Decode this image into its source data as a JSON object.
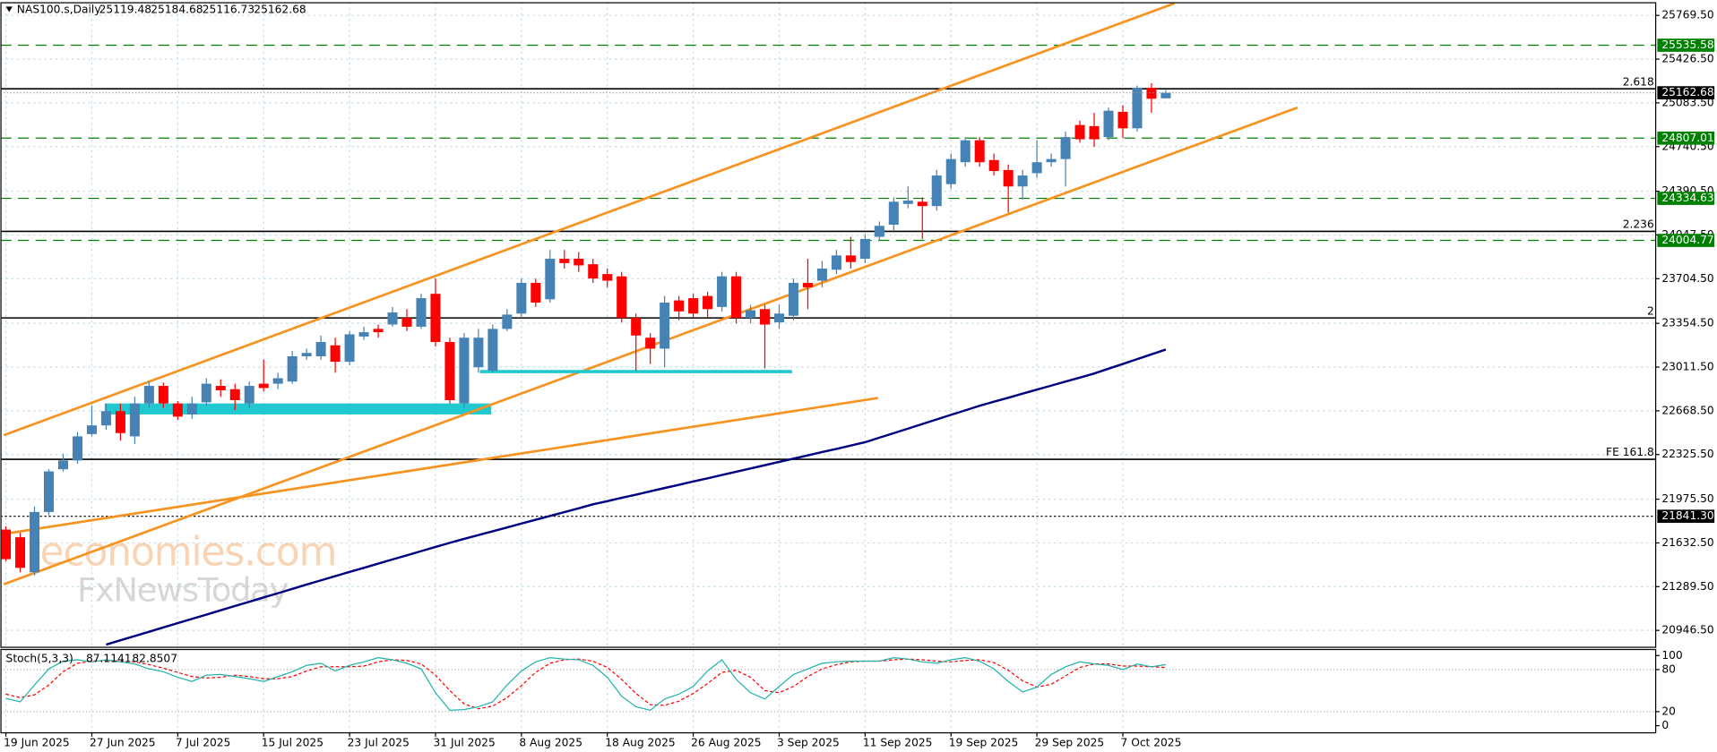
{
  "chart_data": [
    {
      "type": "candlestick",
      "title": "NAS100.s,Daily",
      "categories": [
        "19 Jun 2025",
        null,
        null,
        null,
        null,
        null,
        "27 Jun 2025",
        null,
        null,
        null,
        null,
        null,
        "7 Jul 2025",
        null,
        null,
        null,
        null,
        null,
        "15 Jul 2025",
        null,
        null,
        null,
        null,
        null,
        "23 Jul 2025",
        null,
        null,
        null,
        null,
        null,
        "31 Jul 2025",
        null,
        null,
        null,
        null,
        null,
        "8 Aug 2025",
        null,
        null,
        null,
        null,
        null,
        "18 Aug 2025",
        null,
        null,
        null,
        null,
        null,
        "26 Aug 2025",
        null,
        null,
        null,
        null,
        null,
        "3 Sep 2025",
        null,
        null,
        null,
        null,
        null,
        "11 Sep 2025",
        null,
        null,
        null,
        null,
        null,
        "19 Sep 2025",
        null,
        null,
        null,
        null,
        null,
        "29 Sep 2025",
        null,
        null,
        null,
        null,
        null,
        "7 Oct 2025",
        null,
        null,
        null
      ],
      "open": [
        21737,
        21677,
        21402,
        21875,
        22210,
        22279,
        22486,
        22554,
        22666,
        22468,
        22726,
        22864,
        22726,
        22640,
        22735,
        22864,
        22838,
        22726,
        22881,
        22881,
        22898,
        23096,
        23096,
        23182,
        23053,
        23251,
        23311,
        23345,
        23397,
        23328,
        23586,
        23208,
        22726,
        23010,
        22984,
        23311,
        23431,
        23672,
        23543,
        23861,
        23861,
        23818,
        23741,
        23723,
        23397,
        23242,
        23156,
        23534,
        23552,
        23569,
        23483,
        23723,
        23397,
        23466,
        23362,
        23414,
        23672,
        23689,
        23775,
        23887,
        23861,
        24033,
        24128,
        24291,
        24308,
        24274,
        24446,
        24618,
        24790,
        24635,
        24557,
        24428,
        24532,
        24618,
        24643,
        24910,
        24901,
        24815,
        25013,
        24884,
        25202,
        25119.48
      ],
      "high": [
        21763,
        21712,
        21918,
        22210,
        22331,
        22503,
        22709,
        22726,
        22726,
        22778,
        22898,
        22890,
        22744,
        22778,
        22924,
        22915,
        22881,
        22898,
        23070,
        22967,
        23139,
        23156,
        23259,
        23242,
        23294,
        23328,
        23345,
        23483,
        23466,
        23586,
        23706,
        23242,
        23277,
        23311,
        23345,
        23466,
        23706,
        23706,
        23930,
        23930,
        23913,
        23861,
        23784,
        23758,
        23431,
        23277,
        23569,
        23569,
        23586,
        23603,
        23758,
        23758,
        23500,
        23500,
        23500,
        23706,
        23861,
        23844,
        23930,
        24033,
        24050,
        24153,
        24343,
        24428,
        24343,
        24557,
        24686,
        24815,
        24815,
        24686,
        24600,
        24557,
        24790,
        24686,
        24858,
        24944,
        25005,
        25047,
        25065,
        25219,
        25237,
        25184.68
      ],
      "low": [
        21488,
        21402,
        21376,
        21849,
        22193,
        22253,
        22468,
        22520,
        22434,
        22408,
        22692,
        22692,
        22597,
        22606,
        22709,
        22778,
        22675,
        22692,
        22821,
        22838,
        22881,
        23070,
        23070,
        22967,
        23027,
        23225,
        23242,
        23328,
        23294,
        23311,
        23173,
        22726,
        22692,
        22967,
        22967,
        23294,
        23397,
        23483,
        23517,
        23784,
        23758,
        23672,
        23637,
        23362,
        22984,
        23036,
        23010,
        23380,
        23397,
        23397,
        23448,
        23354,
        23354,
        23001,
        23311,
        23380,
        23466,
        23637,
        23741,
        23784,
        23827,
        23999,
        24085,
        24257,
        24016,
        24239,
        24411,
        24583,
        24583,
        24514,
        24222,
        24325,
        24497,
        24583,
        24428,
        24772,
        24738,
        24790,
        24807,
        24858,
        25005,
        25116.73
      ],
      "close": [
        21505,
        21437,
        21875,
        22193,
        22279,
        22468,
        22554,
        22666,
        22494,
        22726,
        22864,
        22726,
        22623,
        22726,
        22881,
        22829,
        22752,
        22864,
        22847,
        22924,
        23096,
        23122,
        23208,
        23053,
        23268,
        23285,
        23285,
        23440,
        23328,
        23552,
        23208,
        22752,
        23242,
        23242,
        23311,
        23423,
        23672,
        23517,
        23861,
        23827,
        23809,
        23706,
        23689,
        23397,
        23259,
        23156,
        23517,
        23448,
        23431,
        23466,
        23723,
        23397,
        23457,
        23345,
        23431,
        23672,
        23637,
        23784,
        23887,
        23835,
        24016,
        24119,
        24308,
        24317,
        24274,
        24514,
        24643,
        24790,
        24618,
        24549,
        24428,
        24514,
        24618,
        24643,
        24815,
        24798,
        24798,
        25022,
        24884,
        25202,
        25116,
        25162.68
      ],
      "up_color": "#4682b4",
      "down_color": "#ff0000",
      "ylim": [
        20818,
        25873
      ],
      "yticks": [
        {
          "value": 25769.5,
          "label": "25769.50"
        },
        {
          "value": 25426.5,
          "label": "25426.50"
        },
        {
          "value": 25083.5,
          "label": "25083.50"
        },
        {
          "value": 24740.5,
          "label": "24740.50"
        },
        {
          "value": 24390.5,
          "label": "24390.50"
        },
        {
          "value": 24047.5,
          "label": "24047.50"
        },
        {
          "value": 23704.5,
          "label": "23704.50"
        },
        {
          "value": 23354.5,
          "label": "23354.50"
        },
        {
          "value": 23011.5,
          "label": "23011.50"
        },
        {
          "value": 22668.5,
          "label": "22668.50"
        },
        {
          "value": 22325.5,
          "label": "22325.50"
        },
        {
          "value": 21975.5,
          "label": "21975.50"
        },
        {
          "value": 21632.5,
          "label": "21632.50"
        },
        {
          "value": 21289.5,
          "label": "21289.50"
        },
        {
          "value": 20946.5,
          "label": "20946.50"
        }
      ],
      "grid": true,
      "ma": {
        "color": "#000080",
        "values": [
          null,
          null,
          null,
          null,
          null,
          null,
          null,
          20835,
          20869,
          20902,
          20936,
          20970,
          21003,
          21037,
          21070,
          21104,
          21138,
          21171,
          21205,
          21238,
          21272,
          21306,
          21339,
          21372,
          21405,
          21437,
          21470,
          21503,
          21535,
          21568,
          21601,
          21633,
          21664,
          21694,
          21724,
          21754,
          21784,
          21814,
          21844,
          21874,
          21904,
          21935,
          21960,
          21986,
          22011,
          22037,
          22063,
          22088,
          22114,
          22139,
          22165,
          22191,
          22216,
          22242,
          22268,
          22293,
          22319,
          22345,
          22370,
          22396,
          22422,
          22458,
          22493,
          22529,
          22565,
          22601,
          22637,
          22672,
          22708,
          22740,
          22771,
          22803,
          22835,
          22866,
          22898,
          22929,
          22961,
          22999,
          23036,
          23074,
          23111,
          23149
        ]
      },
      "levels": [
        {
          "value": 25535.58,
          "color": "#008000"
        },
        {
          "value": 24807.01,
          "color": "#008000"
        },
        {
          "value": 24334.63,
          "color": "#008000"
        },
        {
          "value": 24004.77,
          "color": "#008000"
        },
        {
          "value": 21841.3,
          "label": "21841.30",
          "color": "#000000"
        }
      ],
      "fib_lines": [
        {
          "label": "2.618",
          "value": 25194
        },
        {
          "label": "2.236",
          "value": 24076
        },
        {
          "label": "2",
          "value": 23397
        },
        {
          "label": "FE 161.8",
          "value": 22288
        }
      ],
      "trendlines": [
        {
          "color": "#f7931e",
          "points": [
            [
              -0.15,
              22477
            ],
            [
              81.6,
              25864
            ]
          ]
        },
        {
          "color": "#f7931e",
          "points": [
            [
              -0.15,
              21308
            ],
            [
              90.2,
              25047
            ]
          ]
        },
        {
          "color": "#f7931e",
          "points": [
            [
              -0.15,
              21703
            ],
            [
              60.9,
              22769
            ]
          ]
        },
        {
          "color": "#20c8d0",
          "points": [
            [
              33.1,
              22976
            ],
            [
              54.9,
              22976
            ]
          ]
        }
      ],
      "zones": [
        {
          "color": "#20c8d0",
          "x": [
            6.9,
            33.9
          ],
          "y": [
            22640,
            22726
          ]
        }
      ],
      "watermark": [
        "economies.com",
        "FxNewsToday"
      ]
    },
    {
      "type": "stochastic",
      "title": "Stoch(5,3,3)",
      "series": [
        {
          "color": "#20b2aa",
          "values": [
            39,
            34,
            58,
            81,
            92,
            94,
            91,
            94,
            91,
            88,
            81,
            77,
            69,
            63,
            72,
            73,
            70,
            67,
            63,
            70,
            77,
            86,
            89,
            78,
            86,
            91,
            97,
            94,
            89,
            81,
            47,
            22,
            23,
            27,
            34,
            58,
            78,
            91,
            97,
            95,
            94,
            86,
            69,
            42,
            27,
            22,
            38,
            45,
            56,
            78,
            94,
            66,
            47,
            38,
            56,
            73,
            81,
            89,
            91,
            92,
            92,
            92,
            97,
            95,
            91,
            89,
            94,
            97,
            92,
            81,
            63,
            48,
            55,
            73,
            84,
            91,
            88,
            86,
            80,
            88,
            84,
            87.1141
          ]
        },
        {
          "color": "#ff0000",
          "values": [
            45,
            40,
            44,
            58,
            77,
            89,
            92,
            93,
            92,
            91,
            87,
            82,
            76,
            70,
            68,
            69,
            72,
            70,
            67,
            67,
            70,
            78,
            84,
            84,
            84,
            85,
            91,
            94,
            93,
            88,
            72,
            50,
            31,
            24,
            28,
            40,
            57,
            76,
            89,
            94,
            95,
            92,
            83,
            66,
            46,
            30,
            29,
            35,
            46,
            60,
            76,
            79,
            69,
            50,
            47,
            56,
            70,
            81,
            87,
            91,
            92,
            92,
            94,
            95,
            94,
            92,
            91,
            93,
            94,
            90,
            79,
            64,
            55,
            59,
            71,
            83,
            88,
            88,
            85,
            85,
            84,
            82.8507
          ]
        }
      ],
      "ylim": [
        -9.4,
        109.4
      ],
      "yticks": [
        0,
        20,
        80,
        100
      ],
      "levels": [
        20,
        80
      ]
    }
  ]
}
